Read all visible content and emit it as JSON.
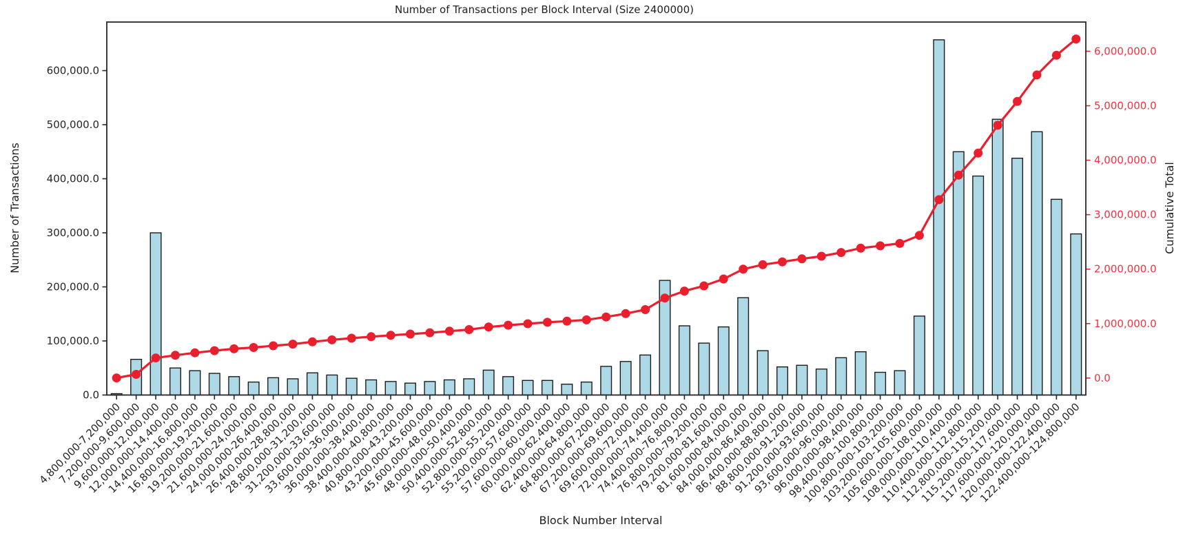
{
  "chart_data": {
    "type": "bar",
    "title": "Number of Transactions per Block Interval (Size 2400000)",
    "xlabel": "Block Number Interval",
    "ylabel_left": "Number of Transactions",
    "ylabel_right": "Cumulative Total",
    "grid": false,
    "legend": "none",
    "colors": {
      "bar_fill": "#add8e6",
      "bar_edge": "#1c1c1c",
      "line": "#ea1f2e",
      "right_axis_text": "#ef3340",
      "spine": "#262626",
      "background": "#ffffff"
    },
    "categories": [
      "4,800,000-7,200,000",
      "7,200,000-9,600,000",
      "9,600,000-12,000,000",
      "12,000,000-14,400,000",
      "14,400,000-16,800,000",
      "16,800,000-19,200,000",
      "19,200,000-21,600,000",
      "21,600,000-24,000,000",
      "24,000,000-26,400,000",
      "26,400,000-28,800,000",
      "28,800,000-31,200,000",
      "31,200,000-33,600,000",
      "33,600,000-36,000,000",
      "36,000,000-38,400,000",
      "38,400,000-40,800,000",
      "40,800,000-43,200,000",
      "43,200,000-45,600,000",
      "45,600,000-48,000,000",
      "48,000,000-50,400,000",
      "50,400,000-52,800,000",
      "52,800,000-55,200,000",
      "55,200,000-57,600,000",
      "57,600,000-60,000,000",
      "60,000,000-62,400,000",
      "62,400,000-64,800,000",
      "64,800,000-67,200,000",
      "67,200,000-69,600,000",
      "69,600,000-72,000,000",
      "72,000,000-74,400,000",
      "74,400,000-76,800,000",
      "76,800,000-79,200,000",
      "79,200,000-81,600,000",
      "81,600,000-84,000,000",
      "84,000,000-86,400,000",
      "86,400,000-88,800,000",
      "88,800,000-91,200,000",
      "91,200,000-93,600,000",
      "93,600,000-96,000,000",
      "96,000,000-98,400,000",
      "98,400,000-100,800,000",
      "100,800,000-103,200,000",
      "103,200,000-105,600,000",
      "105,600,000-108,000,000",
      "108,000,000-110,400,000",
      "110,400,000-112,800,000",
      "112,800,000-115,200,000",
      "115,200,000-117,600,000",
      "117,600,000-120,000,000",
      "120,000,000-122,400,000",
      "122,400,000-124,800,000"
    ],
    "series": [
      {
        "name": "Number of Transactions",
        "type": "bar",
        "axis": "left",
        "values": [
          2500,
          66000,
          300000,
          50000,
          45000,
          40000,
          34000,
          24000,
          32000,
          30000,
          41000,
          37000,
          31000,
          28000,
          25000,
          22000,
          25000,
          28000,
          30000,
          46000,
          34000,
          27000,
          27000,
          20000,
          24000,
          53000,
          62000,
          74000,
          212000,
          128000,
          96000,
          126000,
          180000,
          82000,
          52000,
          55000,
          48000,
          69000,
          80000,
          42000,
          45000,
          146000,
          657000,
          450000,
          405000,
          510000,
          438000,
          487000,
          362000,
          298000
        ]
      },
      {
        "name": "Cumulative Total",
        "type": "line",
        "axis": "right",
        "values": [
          2500,
          68500,
          368500,
          418500,
          463500,
          503500,
          537500,
          561500,
          593500,
          623500,
          664500,
          701500,
          732500,
          760500,
          785500,
          807500,
          832500,
          860500,
          890500,
          936500,
          970500,
          997500,
          1024500,
          1044500,
          1068500,
          1121500,
          1183500,
          1257500,
          1469500,
          1597500,
          1693500,
          1819500,
          1999500,
          2081500,
          2133500,
          2188500,
          2236500,
          2305500,
          2385500,
          2427500,
          2472500,
          2618500,
          3275500,
          3725500,
          4130500,
          4640500,
          5078500,
          5565500,
          5927500,
          6225500
        ]
      }
    ],
    "axes": {
      "left": {
        "tick_labels": [
          "0.0",
          "100,000.0",
          "200,000.0",
          "300,000.0",
          "400,000.0",
          "500,000.0",
          "600,000.0"
        ],
        "tick_values": [
          0,
          100000,
          200000,
          300000,
          400000,
          500000,
          600000
        ],
        "lim": [
          0,
          689850
        ]
      },
      "right": {
        "tick_labels": [
          "0.0",
          "1,000,000.0",
          "2,000,000.0",
          "3,000,000.0",
          "4,000,000.0",
          "5,000,000.0",
          "6,000,000.0"
        ],
        "tick_values": [
          0,
          1000000,
          2000000,
          3000000,
          4000000,
          5000000,
          6000000
        ],
        "lim": [
          -311275,
          6536775
        ]
      },
      "x": {
        "tick_rotation_deg": 45
      }
    }
  }
}
